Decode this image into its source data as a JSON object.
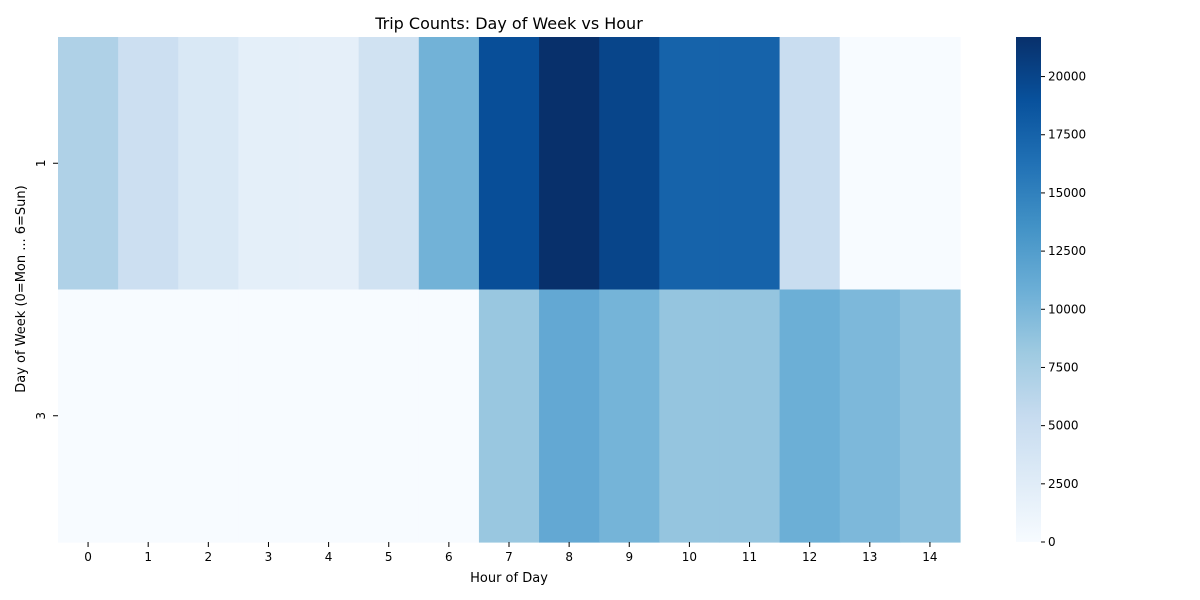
{
  "chart_data": {
    "type": "heatmap",
    "title": "Trip Counts: Day of Week vs Hour",
    "xlabel": "Hour of Day",
    "ylabel": "Day of Week (0=Mon ... 6=Sun)",
    "x": [
      0,
      1,
      2,
      3,
      4,
      5,
      6,
      7,
      8,
      9,
      10,
      11,
      12,
      13,
      14
    ],
    "y": [
      1,
      3
    ],
    "values": [
      [
        7000,
        4800,
        3300,
        2100,
        2000,
        4300,
        10500,
        19200,
        21700,
        20000,
        17500,
        17500,
        5100,
        0,
        0
      ],
      [
        0,
        0,
        0,
        0,
        0,
        0,
        0,
        8400,
        11400,
        10300,
        8600,
        8600,
        10800,
        9900,
        9100
      ]
    ],
    "colormap": "Blues",
    "vmin": 0,
    "vmax": 21700,
    "colorbar_ticks": [
      0,
      2500,
      5000,
      7500,
      10000,
      12500,
      15000,
      17500,
      20000
    ],
    "grid": false
  }
}
